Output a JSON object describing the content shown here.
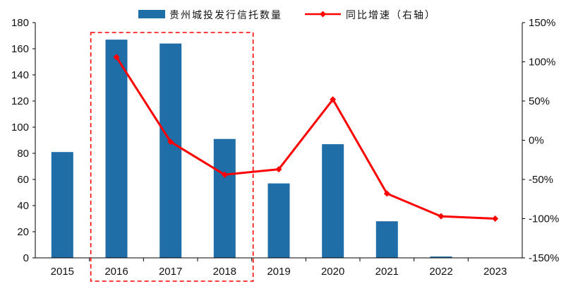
{
  "chart_data": {
    "type": "bar",
    "categories": [
      "2015",
      "2016",
      "2017",
      "2018",
      "2019",
      "2020",
      "2021",
      "2022",
      "2023"
    ],
    "series": [
      {
        "name": "贵州城投发行信托数量",
        "type": "bar",
        "axis": "left",
        "values": [
          81,
          167,
          164,
          91,
          57,
          87,
          28,
          1,
          0
        ]
      },
      {
        "name": "同比增速（右轴）",
        "type": "line",
        "axis": "right",
        "values": [
          null,
          106,
          -2,
          -44,
          -37,
          52,
          -68,
          -97,
          -100
        ]
      }
    ],
    "y_left": {
      "min": 0,
      "max": 180,
      "step": 20,
      "ticks": [
        "0",
        "20",
        "40",
        "60",
        "80",
        "100",
        "120",
        "140",
        "160",
        "180"
      ]
    },
    "y_right": {
      "min": -150,
      "max": 150,
      "step": 50,
      "ticks": [
        "-150%",
        "-100%",
        "-50%",
        "0%",
        "50%",
        "100%",
        "150%"
      ]
    },
    "highlight": {
      "categories": [
        "2016",
        "2017",
        "2018"
      ],
      "style": "dashed-box"
    },
    "grid": false,
    "legend_position": "top",
    "colors": {
      "bar": "#1f6ea8",
      "line": "#ff0000",
      "highlight": "#ff0000",
      "axis": "#000000"
    }
  }
}
